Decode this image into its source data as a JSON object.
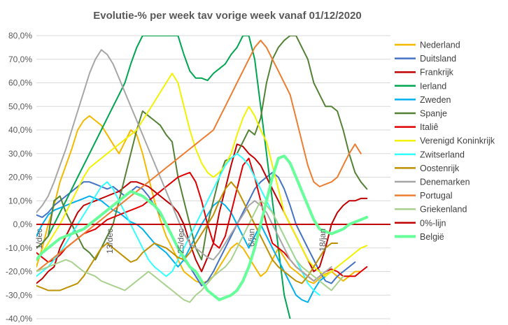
{
  "chart_data": {
    "type": "line",
    "title": "Evolutie-% per week tav vorige week vanaf 01/12/2020",
    "xlabel": "",
    "ylabel": "",
    "ylim": [
      -40,
      80
    ],
    "y_ticks": [
      "80,0%",
      "70,0%",
      "60,0%",
      "50,0%",
      "40,0%",
      "30,0%",
      "20,0%",
      "10,0%",
      "0,0%",
      "-10,0%",
      "-20,0%",
      "-30,0%",
      "-40,0%"
    ],
    "y_tick_values": [
      80,
      70,
      60,
      50,
      40,
      30,
      20,
      10,
      0,
      -10,
      -20,
      -30,
      -40
    ],
    "x_range": [
      0,
      60
    ],
    "x_ticks": [
      {
        "label": "1/dec",
        "x": 0
      },
      {
        "label": "13/dec",
        "x": 12
      },
      {
        "label": "25/dec",
        "x": 24
      },
      {
        "label": "6/jan",
        "x": 36
      },
      {
        "label": "18/jan",
        "x": 48
      }
    ],
    "grid": true,
    "legend_position": "right",
    "series": [
      {
        "name": "Nederland",
        "color": "#f5b800",
        "width": 2,
        "values": [
          -18,
          -10,
          0,
          8,
          18,
          25,
          32,
          40,
          44,
          46,
          44,
          42,
          38,
          34,
          30,
          35,
          40,
          38,
          30,
          20,
          10,
          2,
          -5,
          -10,
          -15,
          -20,
          -22,
          -24,
          -25,
          -24,
          -22,
          -18,
          -14,
          -10,
          -8,
          -10,
          -14,
          -18,
          -22,
          -20,
          -15,
          -10,
          -14,
          -18,
          -20,
          -22,
          -24,
          -25,
          -23,
          -21,
          -20,
          -22,
          -24,
          -22,
          -20,
          -20
        ]
      },
      {
        "name": "Duitsland",
        "color": "#4472c4",
        "width": 2,
        "values": [
          4,
          3,
          5,
          8,
          10,
          12,
          14,
          16,
          18,
          18,
          17,
          16,
          15,
          16,
          14,
          12,
          14,
          16,
          15,
          12,
          8,
          4,
          0,
          -5,
          -10,
          -15,
          -18,
          -22,
          -26,
          -24,
          -20,
          -15,
          -10,
          -5,
          0,
          5,
          10,
          15,
          18,
          20,
          22,
          20,
          15,
          8,
          0,
          -5,
          -10,
          -15,
          -20,
          -24,
          -25,
          -22,
          -20,
          -18,
          -16
        ]
      },
      {
        "name": "Frankrijk",
        "color": "#c00000",
        "width": 2,
        "values": [
          -25,
          -23,
          -20,
          -18,
          -10,
          -5,
          0,
          5,
          8,
          9,
          10,
          11,
          12,
          13,
          14,
          16,
          18,
          18,
          17,
          16,
          14,
          12,
          10,
          8,
          5,
          0,
          -8,
          -15,
          -20,
          -14,
          -8,
          5,
          15,
          25,
          34,
          33,
          30,
          28,
          25,
          20,
          15,
          10,
          5,
          0,
          -5,
          -10,
          -15,
          -20,
          -18,
          -10,
          0,
          5,
          8,
          10,
          10,
          11,
          11
        ]
      },
      {
        "name": "Ierland",
        "color": "#00a550",
        "width": 2,
        "values": [
          -10,
          -8,
          -5,
          0,
          5,
          10,
          15,
          20,
          25,
          30,
          35,
          40,
          45,
          50,
          55,
          60,
          68,
          75,
          80,
          80,
          80,
          80,
          80,
          80,
          80,
          72,
          65,
          62,
          62,
          61,
          64,
          66,
          68,
          72,
          75,
          80,
          80,
          70,
          50,
          30,
          10,
          -10,
          -30,
          -40
        ]
      },
      {
        "name": "Zweden",
        "color": "#00b0f0",
        "width": 2,
        "values": [
          -5,
          0,
          4,
          6,
          7,
          8,
          9,
          10,
          11,
          12,
          11,
          10,
          8,
          6,
          5,
          3,
          1,
          0,
          -2,
          -5,
          -8,
          -10,
          -12,
          -15,
          -18,
          -15,
          -10,
          -5,
          0,
          4,
          8,
          10,
          8,
          5,
          0,
          -5,
          -10,
          -5,
          0,
          -5,
          -10,
          -15,
          -20,
          -25,
          -30,
          -32,
          -33,
          -28,
          -24,
          -22,
          -20,
          -18
        ]
      },
      {
        "name": "Spanje",
        "color": "#548235",
        "width": 2,
        "values": [
          -10,
          -8,
          -5,
          10,
          12,
          5,
          0,
          -5,
          -10,
          -12,
          -15,
          -10,
          -5,
          0,
          10,
          20,
          30,
          40,
          48,
          46,
          44,
          42,
          38,
          35,
          20,
          10,
          0,
          -10,
          -15,
          0,
          10,
          20,
          27,
          28,
          30,
          35,
          40,
          38,
          45,
          60,
          70,
          75,
          78,
          80,
          80,
          75,
          70,
          60,
          55,
          50,
          50,
          48,
          40,
          30,
          22,
          18,
          15
        ]
      },
      {
        "name": "Italiê",
        "color": "#e00000",
        "width": 2,
        "values": [
          -12,
          -14,
          -16,
          -15,
          -13,
          -10,
          -8,
          -6,
          -4,
          -3,
          -2,
          0,
          2,
          3,
          4,
          5,
          6,
          7,
          8,
          10,
          12,
          14,
          16,
          18,
          20,
          21,
          22,
          18,
          10,
          0,
          -8,
          -10,
          -5,
          5,
          15,
          25,
          28,
          20,
          10,
          0,
          -8,
          -10,
          -12,
          -15,
          -18,
          -20,
          -22,
          -24,
          -22,
          -20,
          -19,
          -20,
          -22,
          -22,
          -22,
          -20,
          -18
        ]
      },
      {
        "name": "Verenigd Koninkrijk",
        "color": "#f2f200",
        "width": 2,
        "values": [
          -15,
          -12,
          -8,
          -4,
          0,
          5,
          10,
          15,
          20,
          24,
          26,
          28,
          30,
          32,
          34,
          36,
          38,
          40,
          44,
          48,
          52,
          56,
          60,
          64,
          60,
          50,
          40,
          32,
          26,
          22,
          20,
          22,
          25,
          30,
          38,
          45,
          50,
          46,
          40,
          35,
          25,
          15,
          5,
          0,
          -5,
          -10,
          -15,
          -18,
          -20,
          -22,
          -20,
          -18,
          -16,
          -14,
          -12,
          -10,
          -9
        ]
      },
      {
        "name": "Zwitserland",
        "color": "#33ffff",
        "width": 2,
        "values": [
          -22,
          -20,
          -18,
          -15,
          -12,
          -8,
          -4,
          0,
          4,
          8,
          12,
          16,
          18,
          15,
          10,
          5,
          0,
          -5,
          -10,
          -15,
          -18,
          -20,
          -22,
          -20,
          -15,
          -10,
          -5,
          0,
          5,
          10,
          15,
          20,
          25,
          28,
          30,
          28,
          25,
          20,
          15,
          10,
          5,
          0,
          -5,
          -10,
          -15,
          -20,
          -25,
          -28,
          -30
        ]
      },
      {
        "name": "Oostenrijk",
        "color": "#bf9000",
        "width": 2,
        "values": [
          -26,
          -27,
          -28,
          -28,
          -28,
          -27,
          -26,
          -25,
          -22,
          -18,
          -14,
          -10,
          -8,
          -10,
          -12,
          -14,
          -16,
          -15,
          -12,
          -10,
          -8,
          -9,
          -10,
          -12,
          -14,
          -15,
          -12,
          -8,
          -4,
          0,
          4,
          10,
          15,
          18,
          15,
          10,
          5,
          0,
          -5,
          -10,
          -15,
          -18,
          -20,
          -22,
          -24,
          -25,
          -22,
          -18,
          -14,
          -10,
          -8,
          -8
        ]
      },
      {
        "name": "Denemarken",
        "color": "#a6a6a6",
        "width": 2,
        "values": [
          5,
          8,
          12,
          18,
          25,
          32,
          40,
          48,
          56,
          64,
          70,
          74,
          72,
          68,
          62,
          56,
          50,
          44,
          38,
          32,
          26,
          20,
          14,
          8,
          2,
          -4,
          -8,
          -10,
          -12,
          -14,
          -15,
          -12,
          -8,
          -4,
          0,
          4,
          8,
          10,
          8,
          5,
          0,
          -5,
          -10,
          -15,
          -18,
          -20,
          -22,
          -24,
          -22,
          -20,
          -18
        ]
      },
      {
        "name": "Portugal",
        "color": "#ed7d31",
        "width": 2,
        "values": [
          -20,
          -18,
          -16,
          -14,
          -12,
          -10,
          -8,
          -6,
          -4,
          -2,
          0,
          2,
          4,
          6,
          8,
          10,
          12,
          14,
          16,
          18,
          20,
          22,
          24,
          26,
          28,
          30,
          32,
          34,
          36,
          38,
          40,
          45,
          50,
          55,
          60,
          65,
          70,
          75,
          78,
          75,
          70,
          65,
          60,
          55,
          45,
          35,
          25,
          18,
          16,
          17,
          18,
          20,
          25,
          30,
          34,
          30
        ]
      },
      {
        "name": "Griekenland",
        "color": "#a9d18e",
        "width": 2,
        "values": [
          -20,
          -19,
          -18,
          -17,
          -16,
          -15,
          -16,
          -18,
          -20,
          -21,
          -22,
          -24,
          -25,
          -26,
          -27,
          -28,
          -26,
          -24,
          -22,
          -20,
          -22,
          -24,
          -26,
          -28,
          -30,
          -32,
          -33,
          -30,
          -28,
          -25,
          -22,
          -20,
          -18,
          -15,
          -10,
          -5,
          0,
          5,
          10,
          8,
          5,
          0,
          -5,
          -10,
          -15,
          -18,
          -20,
          -22,
          -24,
          -26,
          -28,
          -25,
          -22
        ]
      },
      {
        "name": "0%-lijn",
        "color": "#c00000",
        "width": 2,
        "values": [
          0,
          0
        ]
      },
      {
        "name": "België",
        "color": "#66ff99",
        "width": 4,
        "values": [
          -15,
          -12,
          -10,
          -8,
          -6,
          -5,
          -4,
          -3,
          -2,
          0,
          2,
          4,
          6,
          8,
          10,
          12,
          14,
          13,
          12,
          10,
          8,
          5,
          0,
          -5,
          -10,
          -14,
          -18,
          -20,
          -24,
          -28,
          -30,
          -32,
          -31,
          -30,
          -28,
          -24,
          -18,
          -10,
          0,
          10,
          20,
          28,
          29,
          26,
          20,
          14,
          8,
          2,
          -2,
          -3,
          -4,
          -3,
          -2,
          0,
          1,
          2,
          3
        ]
      }
    ]
  }
}
